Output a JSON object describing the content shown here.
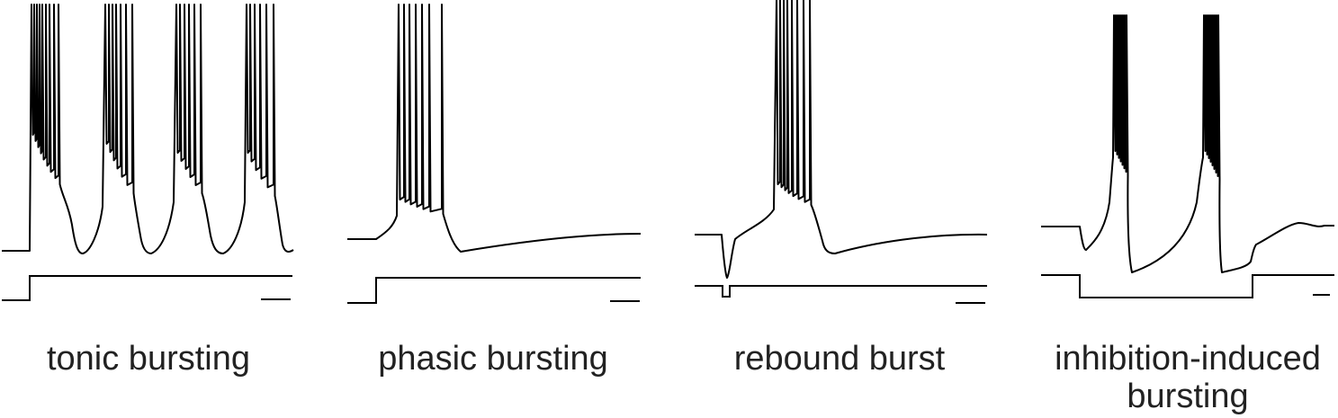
{
  "colors": {
    "trace": "#000000",
    "label": "#222222"
  },
  "panels": [
    {
      "label": "tonic bursting"
    },
    {
      "label": "phasic bursting"
    },
    {
      "label": "rebound burst"
    },
    {
      "label_line1": "inhibition-induced",
      "label_line2": "bursting"
    }
  ]
}
